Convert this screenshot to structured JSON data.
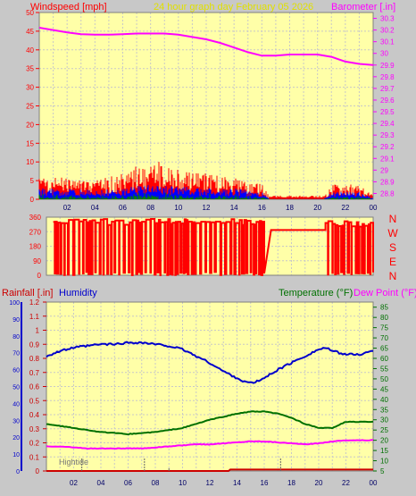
{
  "header": {
    "left_label": "Windspeed [mph]",
    "center_label": "24 hour graph day   February 05 2026",
    "right_label": "Barometer [.in]"
  },
  "bottom_header": {
    "rainfall_label": "Rainfall [.in]",
    "humidity_label": "Humidity",
    "temperature_label": "Temperature (°F)",
    "dewpoint_label": "Dew Point (°F)"
  },
  "annotation": {
    "hightide_label": "Hightide"
  },
  "colors": {
    "plot_bg": "#ffffa8",
    "wind": "#ff0000",
    "gust_blue": "#0000ff",
    "wind_green": "#008000",
    "barometer": "#ff00ff",
    "header_yellow": "#e0e000",
    "humidity": "#0000cc",
    "temperature": "#007000",
    "dewpoint": "#ff00ff",
    "rain": "#cc0000"
  },
  "chart_data": [
    {
      "type": "line",
      "name": "wind-barometer",
      "x_ticks": [
        "02",
        "04",
        "06",
        "08",
        "10",
        "12",
        "14",
        "16",
        "18",
        "20",
        "22",
        "00"
      ],
      "left_axis": {
        "label": "Windspeed [mph]",
        "ylim": [
          0,
          50
        ],
        "ticks": [
          "0",
          "5",
          "10",
          "15",
          "20",
          "25",
          "30",
          "35",
          "40",
          "45",
          "50"
        ]
      },
      "right_axis": {
        "label": "Barometer [.in]",
        "ylim": [
          28.75,
          30.35
        ],
        "ticks": [
          "28.8",
          "28.9",
          "29",
          "29.1",
          "29.2",
          "29.3",
          "29.4",
          "29.5",
          "29.6",
          "29.7",
          "29.8",
          "29.9",
          "30",
          "30.1",
          "30.2",
          "30.3"
        ]
      },
      "series": [
        {
          "name": "Barometer",
          "axis": "right",
          "x": [
            0,
            1,
            2,
            3,
            4,
            5,
            6,
            7,
            8,
            9,
            10,
            11,
            12,
            13,
            14,
            15,
            16,
            17,
            18,
            19,
            20,
            21,
            22,
            23,
            24
          ],
          "values": [
            30.22,
            30.2,
            30.18,
            30.165,
            30.16,
            30.16,
            30.165,
            30.17,
            30.17,
            30.17,
            30.16,
            30.14,
            30.12,
            30.09,
            30.05,
            30.01,
            29.98,
            29.98,
            29.99,
            29.99,
            29.99,
            29.97,
            29.93,
            29.91,
            29.9
          ]
        }
      ],
      "wind_profile": {
        "x": [
          0,
          2,
          4,
          6,
          7,
          8,
          10,
          12,
          14,
          16,
          16.5,
          20.5,
          21,
          23,
          24
        ],
        "gust_max": [
          6,
          6,
          5,
          7,
          9,
          11,
          8,
          7,
          6,
          4,
          1,
          1,
          4,
          4,
          1
        ],
        "avg_max": [
          3,
          3,
          2.5,
          3,
          3.5,
          4,
          3.5,
          3,
          3,
          2,
          0.5,
          0.5,
          2,
          2,
          0.5
        ]
      }
    },
    {
      "type": "scatter",
      "name": "wind-direction",
      "x_ticks": [
        "02",
        "04",
        "06",
        "08",
        "10",
        "12",
        "14",
        "16",
        "18",
        "20",
        "22",
        "00"
      ],
      "ylim": [
        0,
        360
      ],
      "y_ticks": [
        "0",
        "90",
        "180",
        "270",
        "360"
      ],
      "compass_labels": [
        "N",
        "W",
        "S",
        "E",
        "N"
      ],
      "segments": [
        {
          "from": 0.5,
          "to": 16.0,
          "pattern": "oscillating",
          "low": 0,
          "high": 350
        },
        {
          "from": 16.5,
          "to": 20.5,
          "pattern": "steady",
          "value": 280
        },
        {
          "from": 20.5,
          "to": 24.0,
          "pattern": "oscillating",
          "low": 0,
          "high": 340
        }
      ]
    },
    {
      "type": "line",
      "name": "humidity-temperature",
      "x_ticks": [
        "02",
        "04",
        "06",
        "08",
        "10",
        "12",
        "14",
        "16",
        "18",
        "20",
        "22",
        "00"
      ],
      "humidity_axis": {
        "label": "Humidity",
        "ylim": [
          0,
          100
        ],
        "ticks": [
          "0",
          "10",
          "20",
          "30",
          "40",
          "50",
          "60",
          "70",
          "80",
          "90",
          "100"
        ]
      },
      "rain_axis": {
        "label": "Rainfall [.in]",
        "ylim": [
          0,
          1.2
        ],
        "ticks": [
          "0",
          "0.1",
          "0.2",
          "0.3",
          "0.4",
          "0.5",
          "0.6",
          "0.7",
          "0.8",
          "0.9",
          "1",
          "1.1",
          "1.2"
        ]
      },
      "temp_axis": {
        "label": "Temperature (°F)",
        "ylim": [
          5,
          87.5
        ],
        "ticks": [
          "5",
          "10",
          "15",
          "20",
          "25",
          "30",
          "35",
          "40",
          "45",
          "50",
          "55",
          "60",
          "65",
          "70",
          "75",
          "80",
          "85"
        ]
      },
      "series": [
        {
          "name": "Humidity",
          "axis": "humidity",
          "x": [
            0,
            1,
            2,
            3,
            4,
            5,
            6,
            7,
            8,
            9,
            10,
            11,
            12,
            13,
            14,
            14.5,
            15,
            15.5,
            16,
            17,
            18,
            19,
            20,
            20.5,
            21,
            22,
            23,
            24
          ],
          "values": [
            68,
            71,
            73,
            74,
            75,
            75,
            76,
            76,
            75,
            74,
            72,
            68,
            64,
            59,
            55,
            53,
            52,
            53,
            55,
            60,
            64,
            68,
            72,
            73,
            71,
            69,
            69,
            71
          ]
        },
        {
          "name": "Temperature (°F)",
          "axis": "temp",
          "x": [
            0,
            1,
            2,
            3,
            4,
            5,
            6,
            7,
            8,
            9,
            10,
            11,
            12,
            13,
            14,
            15,
            16,
            17,
            18,
            19,
            20,
            21,
            22,
            23,
            24
          ],
          "values": [
            28,
            27,
            26,
            25,
            24,
            23.5,
            23,
            23.5,
            24,
            25,
            26,
            28,
            30,
            31.5,
            33,
            34,
            34,
            33,
            31,
            28,
            26,
            26,
            29,
            29,
            29
          ]
        },
        {
          "name": "Dew Point (°F)",
          "axis": "temp",
          "x": [
            0,
            1,
            2,
            3,
            4,
            5,
            6,
            7,
            8,
            9,
            10,
            11,
            12,
            13,
            14,
            15,
            16,
            17,
            18,
            19,
            20,
            21,
            22,
            23,
            24
          ],
          "values": [
            17,
            17,
            16.5,
            16,
            16,
            16,
            16,
            16,
            16.5,
            17,
            17.5,
            18,
            18,
            18.5,
            19,
            19.5,
            19.5,
            19,
            18.5,
            18,
            18.5,
            19.5,
            20,
            20,
            20
          ]
        },
        {
          "name": "Rainfall [.in]",
          "axis": "rain",
          "x": [
            0,
            13.4,
            13.5,
            24
          ],
          "values": [
            0,
            0,
            0.01,
            0.01
          ]
        }
      ]
    }
  ]
}
